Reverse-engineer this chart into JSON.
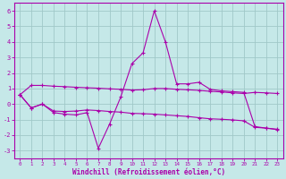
{
  "xlabel": "Windchill (Refroidissement éolien,°C)",
  "xlim": [
    -0.5,
    23.5
  ],
  "ylim": [
    -3.5,
    6.5
  ],
  "yticks": [
    -3,
    -2,
    -1,
    0,
    1,
    2,
    3,
    4,
    5,
    6
  ],
  "xticks": [
    0,
    1,
    2,
    3,
    4,
    5,
    6,
    7,
    8,
    9,
    10,
    11,
    12,
    13,
    14,
    15,
    16,
    17,
    18,
    19,
    20,
    21,
    22,
    23
  ],
  "bg_color": "#c5e8e8",
  "grid_color": "#a0c8c8",
  "line_color": "#aa00aa",
  "line1_x": [
    0,
    1,
    2,
    3,
    4,
    5,
    6,
    7,
    8,
    9,
    10,
    11,
    12,
    13,
    14,
    15,
    16,
    17,
    18,
    19,
    20,
    21,
    22,
    23
  ],
  "line1_y": [
    0.6,
    -0.25,
    0.0,
    -0.55,
    -0.65,
    -0.7,
    -0.55,
    -2.85,
    -1.3,
    0.45,
    2.6,
    3.3,
    6.0,
    4.0,
    1.3,
    1.3,
    1.4,
    0.95,
    0.85,
    0.8,
    0.75,
    -1.45,
    -1.55,
    -1.65
  ],
  "line2_x": [
    0,
    1,
    2,
    3,
    4,
    5,
    6,
    7,
    8,
    9,
    10,
    11,
    12,
    13,
    14,
    15,
    16,
    17,
    18,
    19,
    20,
    21,
    22,
    23
  ],
  "line2_y": [
    0.6,
    1.2,
    1.2,
    1.15,
    1.12,
    1.08,
    1.05,
    1.02,
    0.98,
    0.95,
    0.9,
    0.92,
    1.0,
    1.0,
    0.95,
    0.92,
    0.88,
    0.82,
    0.78,
    0.72,
    0.68,
    0.75,
    0.72,
    0.68
  ],
  "line3_x": [
    0,
    1,
    2,
    3,
    4,
    5,
    6,
    7,
    8,
    9,
    10,
    11,
    12,
    13,
    14,
    15,
    16,
    17,
    18,
    19,
    20,
    21,
    22,
    23
  ],
  "line3_y": [
    0.6,
    -0.25,
    0.0,
    -0.45,
    -0.48,
    -0.45,
    -0.38,
    -0.42,
    -0.48,
    -0.52,
    -0.6,
    -0.62,
    -0.65,
    -0.7,
    -0.75,
    -0.8,
    -0.88,
    -0.95,
    -0.98,
    -1.02,
    -1.08,
    -1.5,
    -1.55,
    -1.62
  ]
}
